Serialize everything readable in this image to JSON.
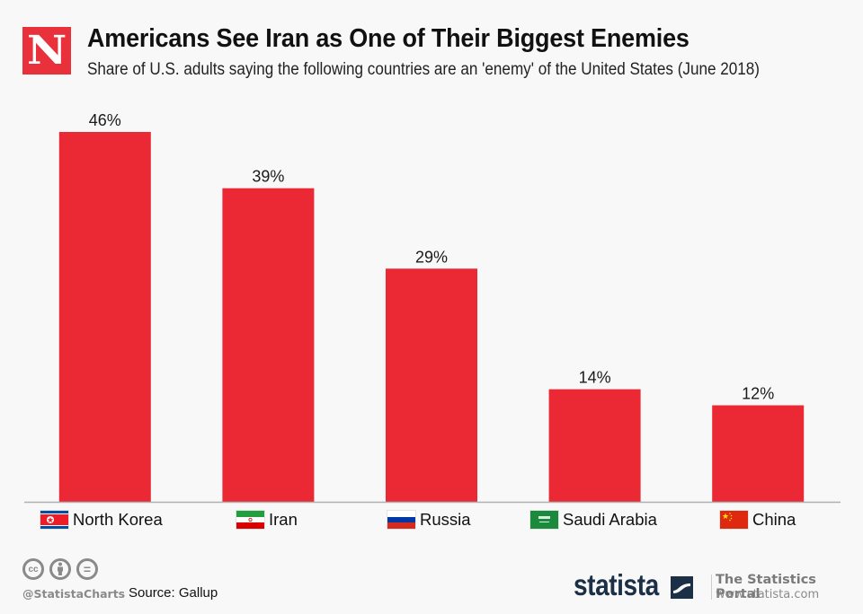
{
  "header": {
    "logo_letter": "N",
    "title": "Americans See Iran as One of Their Biggest Enemies",
    "subtitle": "Share of U.S. adults saying the following countries are an 'enemy' of the United States (June 2018)"
  },
  "colors": {
    "bar": "#ea2934",
    "brand_red": "#e8313a",
    "statista_navy": "#1b2f47",
    "axis": "#b0b0b0"
  },
  "chart_data": {
    "type": "bar",
    "title": "Americans See Iran as One of Their Biggest Enemies",
    "subtitle": "Share of U.S. adults saying the following countries are an 'enemy' of the United States (June 2018)",
    "categories": [
      "North Korea",
      "Iran",
      "Russia",
      "Saudi Arabia",
      "China"
    ],
    "values": [
      46,
      39,
      29,
      14,
      12
    ],
    "data_labels": [
      "46%",
      "39%",
      "29%",
      "14%",
      "12%"
    ],
    "unit": "%",
    "xlabel": "",
    "ylabel": "",
    "ylim": [
      0,
      46
    ],
    "grid": false,
    "legend": "none"
  },
  "categories": [
    {
      "label": "North Korea",
      "flag": "north-korea-flag"
    },
    {
      "label": "Iran",
      "flag": "iran-flag"
    },
    {
      "label": "Russia",
      "flag": "russia-flag"
    },
    {
      "label": "Saudi Arabia",
      "flag": "saudi-arabia-flag"
    },
    {
      "label": "China",
      "flag": "china-flag"
    }
  ],
  "footer": {
    "cc_icons": [
      "cc-icon",
      "attribution-icon",
      "no-derivatives-icon"
    ],
    "cc_label": "cc",
    "no_derivs_label": "=",
    "handle": "@StatistaCharts",
    "source": "Source: Gallup",
    "brand": "statista",
    "portal_title": "The Statistics Portal",
    "portal_url": "www.statista.com"
  }
}
